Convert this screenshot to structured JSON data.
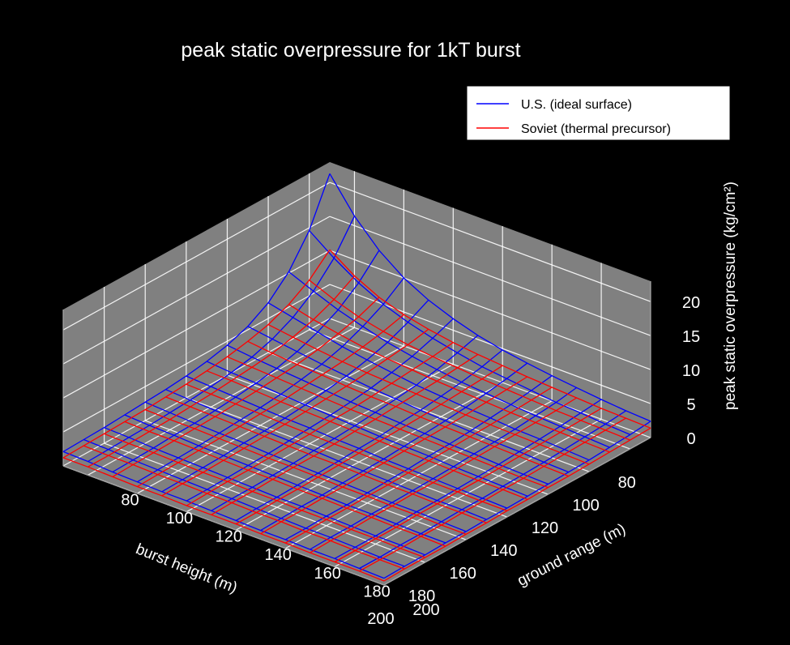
{
  "chart_data": {
    "type": "surface-wireframe-3d",
    "title": "peak static overpressure for 1kT burst",
    "xlabel": "burst height (m)",
    "ylabel": "ground range (m)",
    "zlabel": "peak static overpressure (kg/cm²)",
    "x_ticks": [
      "80",
      "100",
      "120",
      "140",
      "160",
      "180",
      "200"
    ],
    "y_ticks": [
      "80",
      "100",
      "120",
      "140",
      "160",
      "180",
      "200"
    ],
    "z_ticks": [
      "0",
      "5",
      "10",
      "15",
      "20"
    ],
    "xlim": [
      70,
      200
    ],
    "ylim": [
      70,
      200
    ],
    "zlim": [
      0,
      23
    ],
    "grid": true,
    "legend_position": "top-right",
    "x": [
      70,
      80,
      90,
      100,
      110,
      120,
      130,
      140,
      150,
      160,
      170,
      180,
      190,
      200
    ],
    "y": [
      70,
      80,
      90,
      100,
      110,
      120,
      130,
      140,
      150,
      160,
      170,
      180,
      190,
      200
    ],
    "series": [
      {
        "name": "U.S. (ideal surface)",
        "color": "#0000ff",
        "z": [
          [
            21.3,
            16.4,
            12.7,
            10.0,
            8.1,
            6.7,
            5.6,
            4.8,
            4.2,
            3.7,
            3.3,
            2.9,
            2.6,
            2.4
          ],
          [
            14.6,
            11.9,
            9.6,
            7.8,
            6.5,
            5.5,
            4.7,
            4.0,
            3.6,
            3.2,
            2.8,
            2.6,
            2.3,
            2.1
          ],
          [
            10.2,
            8.7,
            7.3,
            6.2,
            5.2,
            4.5,
            3.9,
            3.4,
            3.1,
            2.8,
            2.5,
            2.3,
            2.1,
            1.9
          ],
          [
            7.3,
            6.5,
            5.7,
            4.9,
            4.3,
            3.8,
            3.3,
            3.0,
            2.7,
            2.5,
            2.2,
            2.1,
            1.9,
            1.7
          ],
          [
            5.5,
            5.0,
            4.5,
            4.0,
            3.6,
            3.2,
            2.9,
            2.6,
            2.4,
            2.2,
            2.0,
            1.9,
            1.7,
            1.6
          ],
          [
            4.4,
            4.0,
            3.7,
            3.4,
            3.1,
            2.8,
            2.6,
            2.4,
            2.2,
            2.0,
            1.9,
            1.7,
            1.6,
            1.5
          ],
          [
            3.7,
            3.4,
            3.2,
            2.9,
            2.7,
            2.5,
            2.3,
            2.1,
            2.0,
            1.9,
            1.7,
            1.6,
            1.5,
            1.4
          ],
          [
            3.2,
            3.0,
            2.8,
            2.6,
            2.4,
            2.3,
            2.1,
            2.0,
            1.8,
            1.7,
            1.6,
            1.5,
            1.4,
            1.3
          ],
          [
            2.9,
            2.7,
            2.5,
            2.4,
            2.2,
            2.1,
            2.0,
            1.8,
            1.7,
            1.6,
            1.5,
            1.4,
            1.4,
            1.3
          ],
          [
            2.7,
            2.5,
            2.3,
            2.2,
            2.1,
            1.9,
            1.8,
            1.7,
            1.6,
            1.5,
            1.4,
            1.4,
            1.3,
            1.2
          ],
          [
            2.5,
            2.3,
            2.2,
            2.0,
            1.9,
            1.8,
            1.7,
            1.6,
            1.5,
            1.4,
            1.4,
            1.3,
            1.2,
            1.2
          ],
          [
            2.3,
            2.2,
            2.0,
            1.9,
            1.8,
            1.7,
            1.6,
            1.5,
            1.5,
            1.4,
            1.3,
            1.2,
            1.2,
            1.1
          ],
          [
            2.2,
            2.1,
            1.9,
            1.8,
            1.7,
            1.6,
            1.6,
            1.5,
            1.4,
            1.3,
            1.3,
            1.2,
            1.1,
            1.1
          ],
          [
            2.1,
            2.0,
            1.8,
            1.7,
            1.6,
            1.6,
            1.5,
            1.4,
            1.3,
            1.3,
            1.2,
            1.2,
            1.1,
            1.0
          ]
        ]
      },
      {
        "name": "Soviet (thermal precursor)",
        "color": "#ff0000",
        "z": [
          [
            10.1,
            7.6,
            5.8,
            4.6,
            3.8,
            3.2,
            2.8,
            2.5,
            2.2,
            2.0,
            1.8,
            1.6,
            1.5,
            1.4
          ],
          [
            7.3,
            5.8,
            4.6,
            3.8,
            3.2,
            2.8,
            2.5,
            2.2,
            2.0,
            1.8,
            1.6,
            1.5,
            1.4,
            1.3
          ],
          [
            5.4,
            4.5,
            3.8,
            3.2,
            2.8,
            2.5,
            2.2,
            2.0,
            1.8,
            1.6,
            1.5,
            1.4,
            1.3,
            1.2
          ],
          [
            4.1,
            3.6,
            3.1,
            2.7,
            2.4,
            2.2,
            2.0,
            1.8,
            1.6,
            1.5,
            1.4,
            1.3,
            1.2,
            1.1
          ],
          [
            3.3,
            2.9,
            2.6,
            2.4,
            2.1,
            1.9,
            1.8,
            1.6,
            1.5,
            1.4,
            1.3,
            1.2,
            1.1,
            1.0
          ],
          [
            2.7,
            2.5,
            2.3,
            2.1,
            1.9,
            1.7,
            1.6,
            1.5,
            1.4,
            1.3,
            1.2,
            1.1,
            1.0,
            1.0
          ],
          [
            2.3,
            2.2,
            2.0,
            1.8,
            1.7,
            1.6,
            1.5,
            1.4,
            1.3,
            1.2,
            1.1,
            1.0,
            1.0,
            0.9
          ],
          [
            2.0,
            1.9,
            1.8,
            1.7,
            1.5,
            1.4,
            1.3,
            1.3,
            1.2,
            1.1,
            1.0,
            1.0,
            0.9,
            0.9
          ],
          [
            1.8,
            1.7,
            1.6,
            1.5,
            1.4,
            1.3,
            1.2,
            1.2,
            1.1,
            1.0,
            1.0,
            0.9,
            0.9,
            0.8
          ],
          [
            1.6,
            1.5,
            1.5,
            1.4,
            1.3,
            1.2,
            1.2,
            1.1,
            1.0,
            1.0,
            0.9,
            0.9,
            0.8,
            0.8
          ],
          [
            1.5,
            1.4,
            1.4,
            1.3,
            1.2,
            1.1,
            1.1,
            1.0,
            1.0,
            0.9,
            0.9,
            0.8,
            0.8,
            0.7
          ],
          [
            1.4,
            1.3,
            1.3,
            1.2,
            1.1,
            1.1,
            1.0,
            1.0,
            0.9,
            0.9,
            0.8,
            0.8,
            0.7,
            0.7
          ],
          [
            1.3,
            1.2,
            1.2,
            1.1,
            1.1,
            1.0,
            1.0,
            0.9,
            0.9,
            0.8,
            0.8,
            0.7,
            0.7,
            0.7
          ],
          [
            1.2,
            1.2,
            1.1,
            1.0,
            1.0,
            0.9,
            0.9,
            0.9,
            0.8,
            0.8,
            0.7,
            0.7,
            0.7,
            0.6
          ]
        ]
      }
    ],
    "colors": {
      "background": "#000000",
      "pane": "#808080",
      "grid": "#ffffff",
      "text": "#ffffff"
    }
  }
}
